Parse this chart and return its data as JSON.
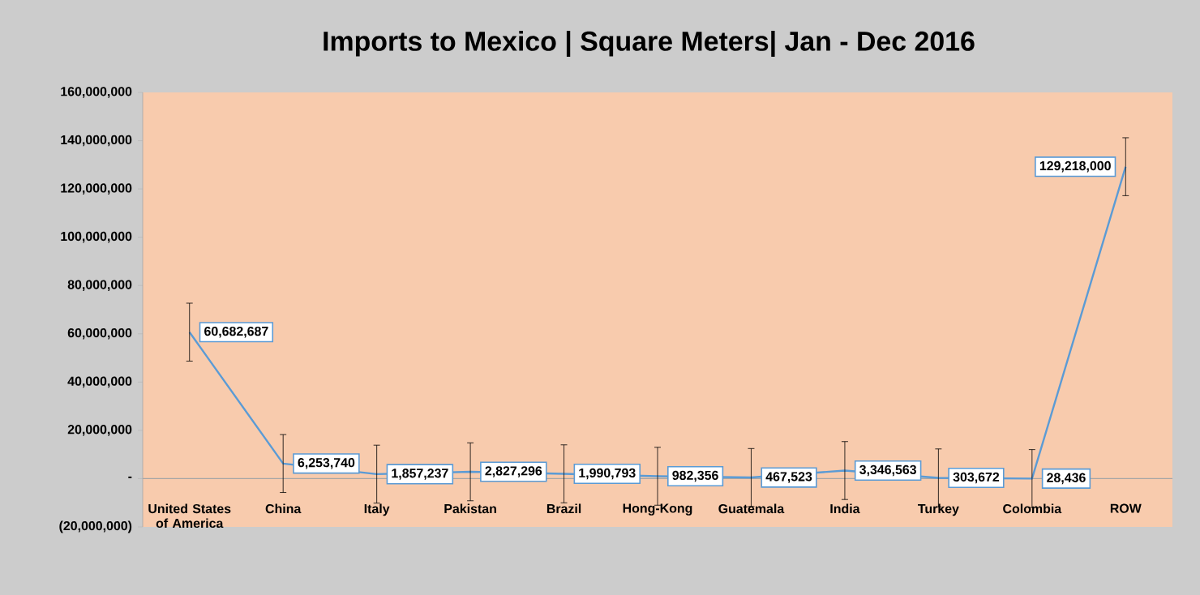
{
  "chart_data": {
    "type": "line",
    "title": "Imports to Mexico | Square Meters| Jan - Dec 2016",
    "categories": [
      "United States of America",
      "China",
      "Italy",
      "Pakistan",
      "Brazil",
      "Hong-Kong",
      "Guatemala",
      "India",
      "Turkey",
      "Colombia",
      "ROW"
    ],
    "series": [
      {
        "color": "#5b9bd5",
        "values": [
          60682687,
          6253740,
          1857237,
          2827296,
          1990793,
          982356,
          467523,
          3346563,
          303672,
          28436,
          129218000
        ],
        "errors": [
          12000000,
          12000000,
          12000000,
          12000000,
          12000000,
          12000000,
          12000000,
          12000000,
          12000000,
          12000000,
          12000000
        ],
        "value_labels": [
          "60,682,687",
          "6,253,740",
          "1,857,237",
          "2,827,296",
          "1,990,793",
          "982,356",
          "467,523",
          "3,346,563",
          "303,672",
          "28,436",
          "129,218,000"
        ]
      }
    ],
    "ylim": [
      -20000000,
      160000000
    ],
    "yticks": [
      {
        "value": -20000000,
        "label": "(20,000,000)"
      },
      {
        "value": 0,
        "label": "-"
      },
      {
        "value": 20000000,
        "label": "20,000,000"
      },
      {
        "value": 40000000,
        "label": "40,000,000"
      },
      {
        "value": 60000000,
        "label": "60,000,000"
      },
      {
        "value": 80000000,
        "label": "80,000,000"
      },
      {
        "value": 100000000,
        "label": "100,000,000"
      },
      {
        "value": 120000000,
        "label": "120,000,000"
      },
      {
        "value": 140000000,
        "label": "140,000,000"
      },
      {
        "value": 160000000,
        "label": "160,000,000"
      }
    ],
    "ref_lines": [
      {
        "axis": "y",
        "value": 0,
        "color": "#a6a6a6",
        "line_style": "solid"
      }
    ],
    "grid": false,
    "legend": false,
    "marker": "none",
    "line_style": "solid"
  }
}
